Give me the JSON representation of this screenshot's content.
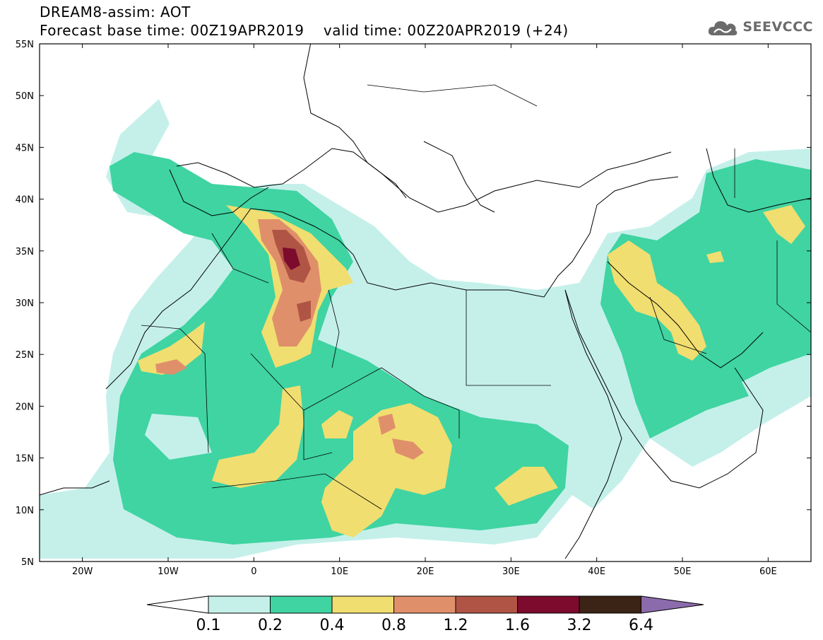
{
  "header": {
    "title": "DREAM8-assim: AOT",
    "base_time": "Forecast base time: 00Z19APR2019",
    "valid_time": "valid time: 00Z20APR2019 (+24)"
  },
  "logo": {
    "text": "SEEVCCC",
    "icon": "cloud-icon"
  },
  "chart_data": {
    "type": "heatmap",
    "variable": "AOT",
    "x_axis": {
      "range": [
        -25,
        65
      ],
      "ticks": [
        "20W",
        "10W",
        "0",
        "10E",
        "20E",
        "30E",
        "40E",
        "50E",
        "60E"
      ]
    },
    "y_axis": {
      "range": [
        5,
        55
      ],
      "ticks": [
        "5N",
        "10N",
        "15N",
        "20N",
        "25N",
        "30N",
        "35N",
        "40N",
        "45N",
        "50N",
        "55N"
      ]
    },
    "colorbar": {
      "labels": [
        "0.1",
        "0.2",
        "0.4",
        "0.8",
        "1.2",
        "1.6",
        "3.2",
        "6.4"
      ],
      "colors": [
        "#c5f0ea",
        "#3fd4a2",
        "#f1de70",
        "#e08f6b",
        "#b05545",
        "#7d0b2d",
        "#3b2316",
        "#8c6bad"
      ]
    }
  }
}
